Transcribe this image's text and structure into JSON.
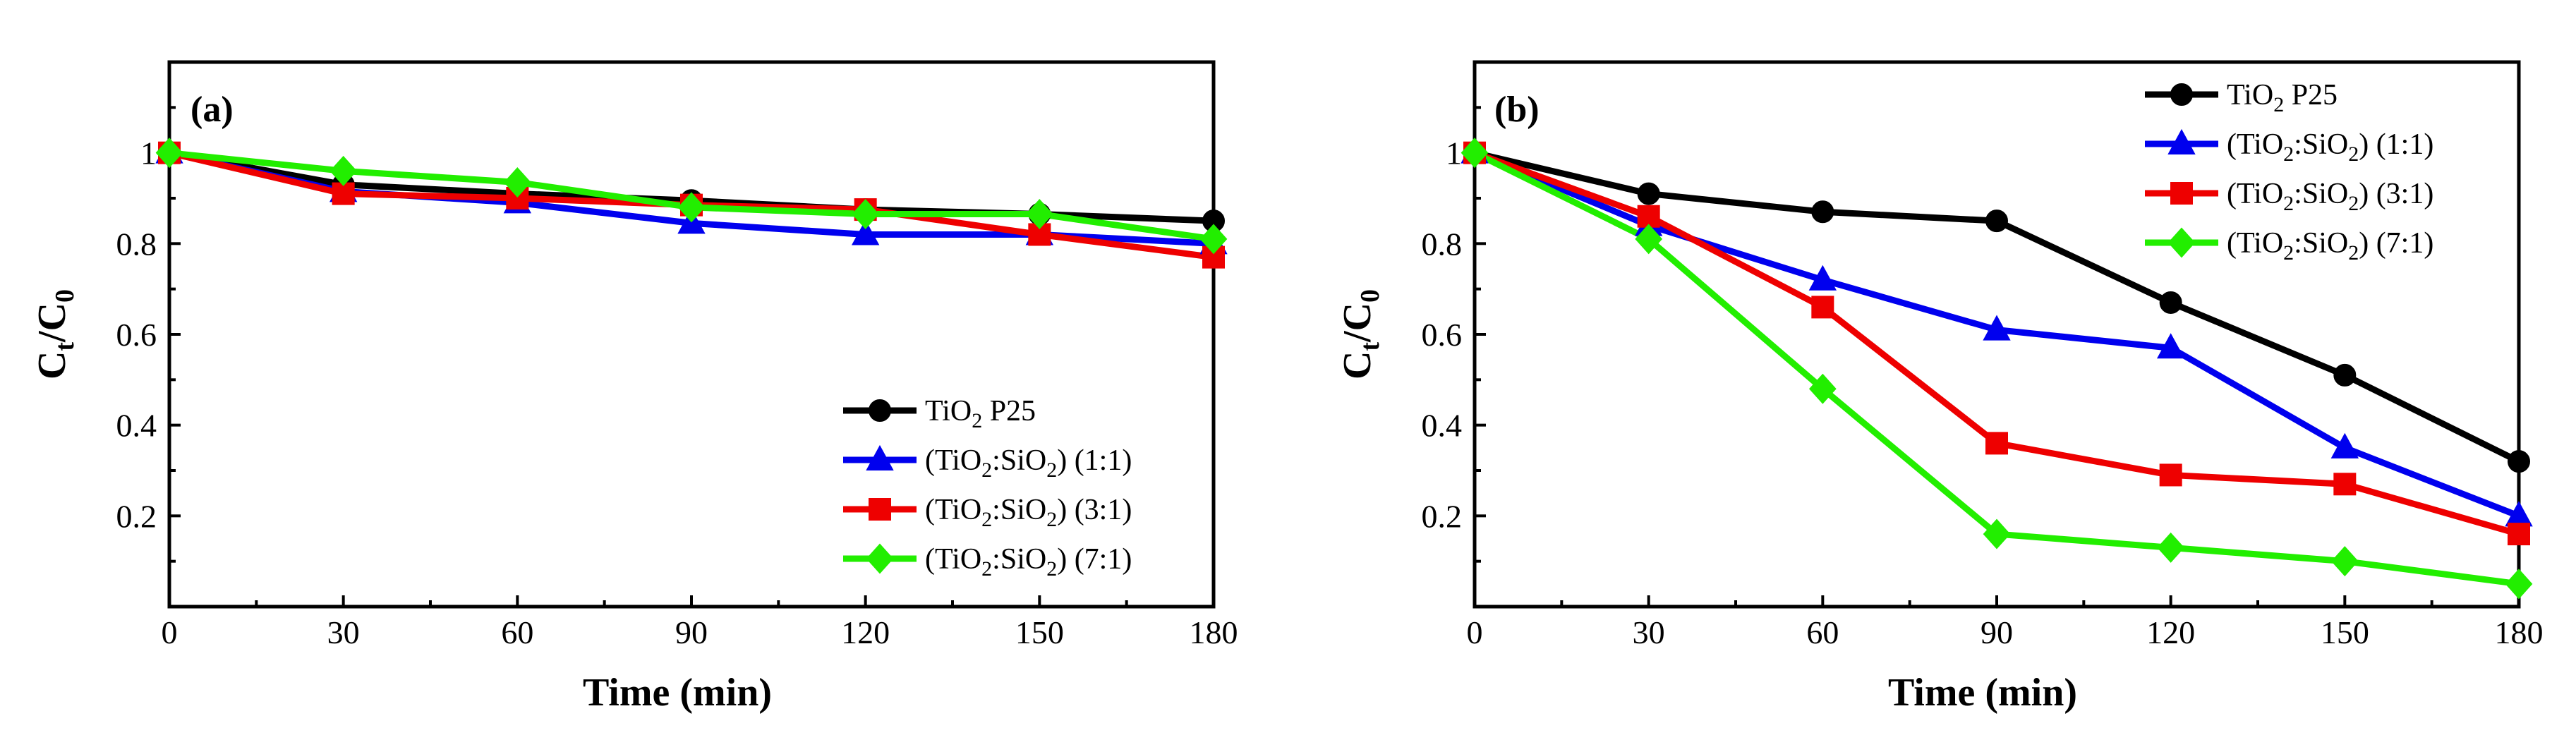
{
  "chart_data": [
    {
      "type": "line",
      "panel_label": "(a)",
      "xlabel": "Time (min)",
      "ylabel": "Ct/C0",
      "ylabel_main": "C",
      "ylabel_sub1": "t",
      "ylabel_sep": "/C",
      "ylabel_sub2": "0",
      "x": [
        0,
        30,
        60,
        90,
        120,
        150,
        180
      ],
      "x_ticks": [
        "0",
        "30",
        "60",
        "90",
        "120",
        "150",
        "180"
      ],
      "y_ticks": [
        "0.2",
        "0.4",
        "0.6",
        "0.8",
        "1"
      ],
      "xlim": [
        0,
        180
      ],
      "ylim": [
        0,
        1.2
      ],
      "legend_position": "bottom-right",
      "series": [
        {
          "name": "TiO2 P25",
          "color": "#000000",
          "marker": "circle",
          "values": [
            1.0,
            0.93,
            0.91,
            0.895,
            0.875,
            0.865,
            0.85
          ]
        },
        {
          "name": "(TiO2:SiO2) (1:1)",
          "color": "#0000ee",
          "marker": "triangle",
          "values": [
            1.0,
            0.915,
            0.89,
            0.845,
            0.82,
            0.82,
            0.8
          ]
        },
        {
          "name": "(TiO2:SiO2) (3:1)",
          "color": "#ee0000",
          "marker": "square",
          "values": [
            1.0,
            0.91,
            0.9,
            0.885,
            0.875,
            0.82,
            0.77
          ]
        },
        {
          "name": "(TiO2:SiO2) (7:1)",
          "color": "#22ee00",
          "marker": "diamond",
          "values": [
            1.0,
            0.96,
            0.935,
            0.88,
            0.865,
            0.865,
            0.81
          ]
        }
      ]
    },
    {
      "type": "line",
      "panel_label": "(b)",
      "xlabel": "Time (min)",
      "ylabel": "Ct/C0",
      "ylabel_main": "C",
      "ylabel_sub1": "t",
      "ylabel_sep": "/C",
      "ylabel_sub2": "0",
      "x": [
        0,
        30,
        60,
        90,
        120,
        150,
        180
      ],
      "x_ticks": [
        "0",
        "30",
        "60",
        "90",
        "120",
        "150",
        "180"
      ],
      "y_ticks": [
        "0.2",
        "0.4",
        "0.6",
        "0.8",
        "1"
      ],
      "xlim": [
        0,
        180
      ],
      "ylim": [
        0,
        1.2
      ],
      "legend_position": "top-right",
      "series": [
        {
          "name": "TiO2 P25",
          "color": "#000000",
          "marker": "circle",
          "values": [
            1.0,
            0.91,
            0.87,
            0.85,
            0.67,
            0.51,
            0.32
          ]
        },
        {
          "name": "(TiO2:SiO2) (1:1)",
          "color": "#0000ee",
          "marker": "triangle",
          "values": [
            1.0,
            0.84,
            0.72,
            0.61,
            0.57,
            0.35,
            0.2
          ]
        },
        {
          "name": "(TiO2:SiO2) (3:1)",
          "color": "#ee0000",
          "marker": "square",
          "values": [
            1.0,
            0.86,
            0.66,
            0.36,
            0.29,
            0.27,
            0.16
          ]
        },
        {
          "name": "(TiO2:SiO2) (7:1)",
          "color": "#22ee00",
          "marker": "diamond",
          "values": [
            1.0,
            0.81,
            0.48,
            0.16,
            0.13,
            0.1,
            0.05
          ]
        }
      ]
    }
  ],
  "legend_labels": [
    {
      "prefix": "TiO",
      "sub1": "2",
      "mid": " P25",
      "sub2": "",
      "suffix": ""
    },
    {
      "prefix": "(TiO",
      "sub1": "2",
      "mid": ":SiO",
      "sub2": "2",
      "suffix": ") (1:1)"
    },
    {
      "prefix": "(TiO",
      "sub1": "2",
      "mid": ":SiO",
      "sub2": "2",
      "suffix": ") (3:1)"
    },
    {
      "prefix": "(TiO",
      "sub1": "2",
      "mid": ":SiO",
      "sub2": "2",
      "suffix": ") (7:1)"
    }
  ]
}
